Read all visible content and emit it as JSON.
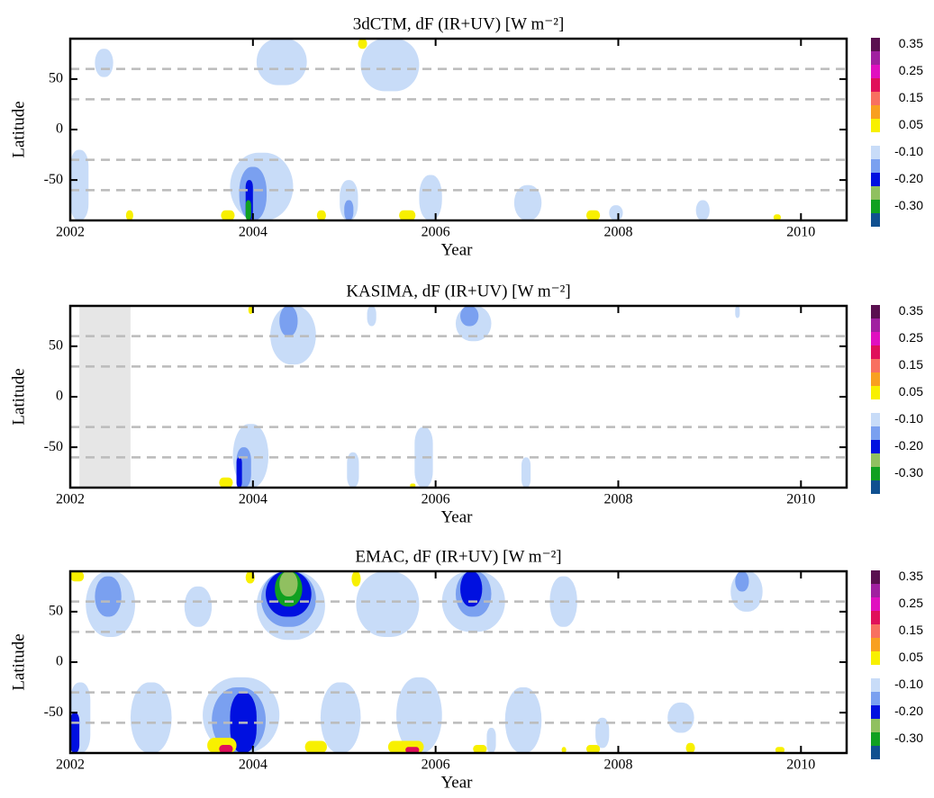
{
  "chart_data": [
    {
      "type": "contour",
      "title": "3dCTM, dF (IR+UV) [W m⁻²]",
      "xlabel": "Year",
      "ylabel": "Latitude",
      "xlim": [
        2002,
        2010.5
      ],
      "xticks": [
        2002,
        2004,
        2006,
        2008,
        2010
      ],
      "ylim": [
        -90,
        90
      ],
      "yticks": [
        -50,
        0,
        50
      ],
      "hlines": [
        -60,
        -30,
        30,
        60
      ],
      "regions": [
        {
          "x": [
            2002.27,
            2002.47
          ],
          "y": [
            52,
            80
          ],
          "value": -0.1
        },
        {
          "x": [
            2004.04,
            2004.59
          ],
          "y": [
            44,
            90
          ],
          "value": -0.1
        },
        {
          "x": [
            2005.18,
            2005.82
          ],
          "y": [
            38,
            90
          ],
          "value": -0.1
        },
        {
          "x": [
            2005.15,
            2005.25
          ],
          "y": [
            80,
            90
          ],
          "value": 0.05
        },
        {
          "x": [
            2002.0,
            2002.2
          ],
          "y": [
            -90,
            -20
          ],
          "value": -0.1
        },
        {
          "x": [
            2003.75,
            2004.44
          ],
          "y": [
            -90,
            -23
          ],
          "value": -0.1
        },
        {
          "x": [
            2003.85,
            2004.15
          ],
          "y": [
            -90,
            -37
          ],
          "value": -0.15
        },
        {
          "x": [
            2003.92,
            2004.0
          ],
          "y": [
            -90,
            -50
          ],
          "value": -0.2
        },
        {
          "x": [
            2003.92,
            2003.98
          ],
          "y": [
            -90,
            -70
          ],
          "value": -0.3
        },
        {
          "x": [
            2004.95,
            2005.15
          ],
          "y": [
            -90,
            -50
          ],
          "value": -0.1
        },
        {
          "x": [
            2005.0,
            2005.1
          ],
          "y": [
            -90,
            -70
          ],
          "value": -0.15
        },
        {
          "x": [
            2005.82,
            2006.07
          ],
          "y": [
            -90,
            -45
          ],
          "value": -0.1
        },
        {
          "x": [
            2006.86,
            2007.16
          ],
          "y": [
            -90,
            -55
          ],
          "value": -0.1
        },
        {
          "x": [
            2007.9,
            2008.05
          ],
          "y": [
            -90,
            -75
          ],
          "value": -0.1
        },
        {
          "x": [
            2008.85,
            2009.0
          ],
          "y": [
            -90,
            -70
          ],
          "value": -0.1
        },
        {
          "x": [
            2002.61,
            2002.69
          ],
          "y": [
            -90,
            -80
          ],
          "value": 0.05
        },
        {
          "x": [
            2003.65,
            2003.8
          ],
          "y": [
            -90,
            -80
          ],
          "value": 0.05
        },
        {
          "x": [
            2004.7,
            2004.8
          ],
          "y": [
            -90,
            -80
          ],
          "value": 0.05
        },
        {
          "x": [
            2005.6,
            2005.78
          ],
          "y": [
            -90,
            -80
          ],
          "value": 0.05
        },
        {
          "x": [
            2007.65,
            2007.8
          ],
          "y": [
            -90,
            -80
          ],
          "value": 0.05
        },
        {
          "x": [
            2009.7,
            2009.78
          ],
          "y": [
            -90,
            -84
          ],
          "value": 0.05
        }
      ],
      "colorbar": {
        "levels": [
          0.35,
          0.3,
          0.25,
          0.2,
          0.15,
          0.1,
          0.05,
          0,
          -0.1,
          -0.15,
          -0.2,
          -0.25,
          -0.3,
          -0.35
        ],
        "colors": [
          "#5a1050",
          "#a020a0",
          "#e010c0",
          "#e0105a",
          "#f87060",
          "#f8a020",
          "#f8f000",
          "#ffffff",
          "#c8dcf8",
          "#7aa0f0",
          "#0010e0",
          "#90c060",
          "#10a020",
          "#105090"
        ],
        "ticks": [
          0.35,
          0.25,
          0.15,
          0.05,
          {
            "value": -0.1,
            "label": "-0.10"
          },
          {
            "value": -0.2,
            "label": "-0.20"
          },
          {
            "value": -0.3,
            "label": "-0.30"
          }
        ]
      }
    },
    {
      "type": "contour",
      "title": "KASIMA, dF (IR+UV) [W m⁻²]",
      "xlabel": "Year",
      "ylabel": "Latitude",
      "xlim": [
        2002,
        2010.5
      ],
      "xticks": [
        2002,
        2004,
        2006,
        2008,
        2010
      ],
      "ylim": [
        -90,
        90
      ],
      "yticks": [
        -50,
        0,
        50
      ],
      "hlines": [
        -60,
        -30,
        30,
        60
      ],
      "shaded": [
        2002.1,
        2002.66
      ],
      "regions": [
        {
          "x": [
            2004.19,
            2004.69
          ],
          "y": [
            32,
            90
          ],
          "value": -0.1
        },
        {
          "x": [
            2004.29,
            2004.49
          ],
          "y": [
            60,
            90
          ],
          "value": -0.15
        },
        {
          "x": [
            2005.25,
            2005.35
          ],
          "y": [
            70,
            90
          ],
          "value": -0.1
        },
        {
          "x": [
            2006.22,
            2006.61
          ],
          "y": [
            55,
            90
          ],
          "value": -0.1
        },
        {
          "x": [
            2006.27,
            2006.47
          ],
          "y": [
            70,
            90
          ],
          "value": -0.15
        },
        {
          "x": [
            2009.28,
            2009.33
          ],
          "y": [
            78,
            90
          ],
          "value": -0.1
        },
        {
          "x": [
            2003.95,
            2004.0
          ],
          "y": [
            82,
            90
          ],
          "value": 0.05
        },
        {
          "x": [
            2003.78,
            2004.17
          ],
          "y": [
            -90,
            -27
          ],
          "value": -0.1
        },
        {
          "x": [
            2003.82,
            2003.98
          ],
          "y": [
            -90,
            -50
          ],
          "value": -0.15
        },
        {
          "x": [
            2003.82,
            2003.88
          ],
          "y": [
            -90,
            -60
          ],
          "value": -0.2
        },
        {
          "x": [
            2003.63,
            2003.78
          ],
          "y": [
            -90,
            -80
          ],
          "value": 0.05
        },
        {
          "x": [
            2005.03,
            2005.16
          ],
          "y": [
            -90,
            -55
          ],
          "value": -0.1
        },
        {
          "x": [
            2005.77,
            2005.97
          ],
          "y": [
            -90,
            -30
          ],
          "value": -0.1
        },
        {
          "x": [
            2005.72,
            2005.78
          ],
          "y": [
            -90,
            -86
          ],
          "value": 0.05
        },
        {
          "x": [
            2006.94,
            2007.04
          ],
          "y": [
            -90,
            -60
          ],
          "value": -0.1
        }
      ],
      "colorbar": {
        "levels": [
          0.35,
          0.3,
          0.25,
          0.2,
          0.15,
          0.1,
          0.05,
          0,
          -0.1,
          -0.15,
          -0.2,
          -0.25,
          -0.3,
          -0.35
        ],
        "colors": [
          "#5a1050",
          "#a020a0",
          "#e010c0",
          "#e0105a",
          "#f87060",
          "#f8a020",
          "#f8f000",
          "#ffffff",
          "#c8dcf8",
          "#7aa0f0",
          "#0010e0",
          "#90c060",
          "#10a020",
          "#105090"
        ],
        "ticks": [
          0.35,
          0.25,
          0.15,
          0.05,
          {
            "value": -0.1,
            "label": "-0.10"
          },
          {
            "value": -0.2,
            "label": "-0.20"
          },
          {
            "value": -0.3,
            "label": "-0.30"
          }
        ]
      }
    },
    {
      "type": "contour",
      "title": "EMAC, dF (IR+UV) [W m⁻²]",
      "xlabel": "Year",
      "ylabel": "Latitude",
      "xlim": [
        2002,
        2010.5
      ],
      "xticks": [
        2002,
        2004,
        2006,
        2008,
        2010
      ],
      "ylim": [
        -90,
        90
      ],
      "yticks": [
        -50,
        0,
        50
      ],
      "hlines": [
        -60,
        -30,
        30,
        60
      ],
      "regions": [
        {
          "x": [
            2002.17,
            2002.71
          ],
          "y": [
            25,
            90
          ],
          "value": -0.1
        },
        {
          "x": [
            2002.27,
            2002.56
          ],
          "y": [
            45,
            85
          ],
          "value": -0.15
        },
        {
          "x": [
            2003.25,
            2003.55
          ],
          "y": [
            35,
            75
          ],
          "value": -0.1
        },
        {
          "x": [
            2004.04,
            2004.79
          ],
          "y": [
            22,
            90
          ],
          "value": -0.1
        },
        {
          "x": [
            2004.09,
            2004.69
          ],
          "y": [
            35,
            90
          ],
          "value": -0.15
        },
        {
          "x": [
            2004.14,
            2004.64
          ],
          "y": [
            45,
            90
          ],
          "value": -0.2
        },
        {
          "x": [
            2004.24,
            2004.54
          ],
          "y": [
            55,
            90
          ],
          "value": -0.3
        },
        {
          "x": [
            2004.29,
            2004.49
          ],
          "y": [
            65,
            90
          ],
          "value": -0.25
        },
        {
          "x": [
            2002.0,
            2002.15
          ],
          "y": [
            80,
            90
          ],
          "value": 0.05
        },
        {
          "x": [
            2003.92,
            2004.02
          ],
          "y": [
            78,
            90
          ],
          "value": 0.05
        },
        {
          "x": [
            2005.08,
            2005.18
          ],
          "y": [
            75,
            90
          ],
          "value": 0.05
        },
        {
          "x": [
            2005.13,
            2005.82
          ],
          "y": [
            25,
            90
          ],
          "value": -0.1
        },
        {
          "x": [
            2006.07,
            2006.76
          ],
          "y": [
            30,
            90
          ],
          "value": -0.1
        },
        {
          "x": [
            2006.22,
            2006.61
          ],
          "y": [
            45,
            90
          ],
          "value": -0.15
        },
        {
          "x": [
            2006.27,
            2006.51
          ],
          "y": [
            55,
            90
          ],
          "value": -0.2
        },
        {
          "x": [
            2007.25,
            2007.55
          ],
          "y": [
            35,
            85
          ],
          "value": -0.1
        },
        {
          "x": [
            2009.23,
            2009.58
          ],
          "y": [
            50,
            90
          ],
          "value": -0.1
        },
        {
          "x": [
            2009.28,
            2009.43
          ],
          "y": [
            70,
            90
          ],
          "value": -0.15
        },
        {
          "x": [
            2002.0,
            2002.22
          ],
          "y": [
            -90,
            -20
          ],
          "value": -0.1
        },
        {
          "x": [
            2002.0,
            2002.1
          ],
          "y": [
            -90,
            -50
          ],
          "value": -0.2
        },
        {
          "x": [
            2002.66,
            2003.11
          ],
          "y": [
            -90,
            -20
          ],
          "value": -0.1
        },
        {
          "x": [
            2003.45,
            2004.29
          ],
          "y": [
            -90,
            -15
          ],
          "value": -0.1
        },
        {
          "x": [
            2003.55,
            2004.14
          ],
          "y": [
            -90,
            -25
          ],
          "value": -0.15
        },
        {
          "x": [
            2003.75,
            2004.04
          ],
          "y": [
            -90,
            -30
          ],
          "value": -0.2
        },
        {
          "x": [
            2004.74,
            2005.18
          ],
          "y": [
            -90,
            -20
          ],
          "value": -0.1
        },
        {
          "x": [
            2005.57,
            2006.07
          ],
          "y": [
            -90,
            -15
          ],
          "value": -0.1
        },
        {
          "x": [
            2006.76,
            2007.16
          ],
          "y": [
            -90,
            -25
          ],
          "value": -0.1
        },
        {
          "x": [
            2006.56,
            2006.66
          ],
          "y": [
            -90,
            -65
          ],
          "value": -0.1
        },
        {
          "x": [
            2007.75,
            2007.9
          ],
          "y": [
            -85,
            -55
          ],
          "value": -0.1
        },
        {
          "x": [
            2008.54,
            2008.83
          ],
          "y": [
            -70,
            -40
          ],
          "value": -0.1
        },
        {
          "x": [
            2003.5,
            2003.82
          ],
          "y": [
            -90,
            -75
          ],
          "value": 0.05
        },
        {
          "x": [
            2003.63,
            2003.78
          ],
          "y": [
            -90,
            -82
          ],
          "value": 0.2
        },
        {
          "x": [
            2004.57,
            2004.81
          ],
          "y": [
            -90,
            -78
          ],
          "value": 0.05
        },
        {
          "x": [
            2005.48,
            2005.87
          ],
          "y": [
            -90,
            -78
          ],
          "value": 0.05
        },
        {
          "x": [
            2005.67,
            2005.82
          ],
          "y": [
            -90,
            -84
          ],
          "value": 0.2
        },
        {
          "x": [
            2006.41,
            2006.56
          ],
          "y": [
            -90,
            -82
          ],
          "value": 0.05
        },
        {
          "x": [
            2007.38,
            2007.43
          ],
          "y": [
            -90,
            -84
          ],
          "value": 0.05
        },
        {
          "x": [
            2007.65,
            2007.8
          ],
          "y": [
            -90,
            -82
          ],
          "value": 0.05
        },
        {
          "x": [
            2008.74,
            2008.84
          ],
          "y": [
            -90,
            -80
          ],
          "value": 0.05
        },
        {
          "x": [
            2009.72,
            2009.82
          ],
          "y": [
            -90,
            -84
          ],
          "value": 0.05
        }
      ],
      "colorbar": {
        "levels": [
          0.35,
          0.3,
          0.25,
          0.2,
          0.15,
          0.1,
          0.05,
          0,
          -0.1,
          -0.15,
          -0.2,
          -0.25,
          -0.3,
          -0.35
        ],
        "colors": [
          "#5a1050",
          "#a020a0",
          "#e010c0",
          "#e0105a",
          "#f87060",
          "#f8a020",
          "#f8f000",
          "#ffffff",
          "#c8dcf8",
          "#7aa0f0",
          "#0010e0",
          "#90c060",
          "#10a020",
          "#105090"
        ],
        "ticks": [
          0.35,
          0.25,
          0.15,
          0.05,
          {
            "value": -0.1,
            "label": "-0.10"
          },
          {
            "value": -0.2,
            "label": "-0.20"
          },
          {
            "value": -0.3,
            "label": "-0.30"
          }
        ]
      }
    }
  ]
}
